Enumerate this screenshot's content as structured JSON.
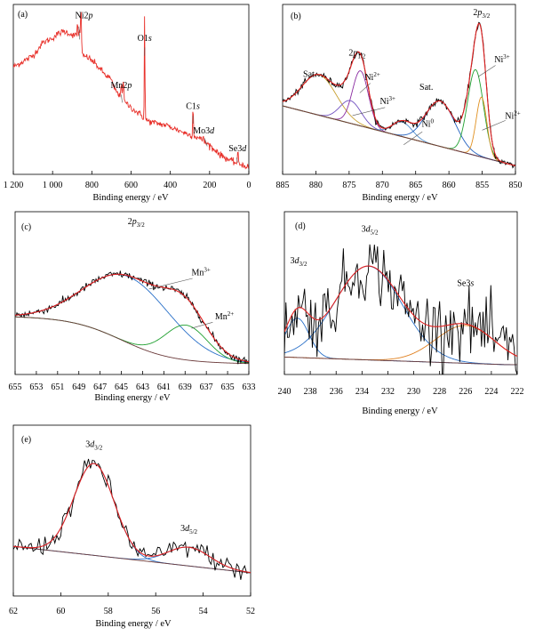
{
  "chart_data": [
    {
      "id": "a",
      "type": "line",
      "panel_label": "(a)",
      "xlabel": "Binding energy / eV",
      "xlim": [
        1200,
        0
      ],
      "ylim": [
        0,
        100
      ],
      "ticks": [
        {
          "v": 1200,
          "t": "1 200"
        },
        {
          "v": 1000,
          "t": "1 000"
        },
        {
          "v": 800,
          "t": "800"
        },
        {
          "v": 600,
          "t": "600"
        },
        {
          "v": 400,
          "t": "400"
        },
        {
          "v": 200,
          "t": "200"
        },
        {
          "v": 0,
          "t": "0"
        }
      ],
      "annotations": [
        {
          "id": "ni2p",
          "text": "Ni2",
          "italic": "p",
          "x": 840,
          "y": 93
        },
        {
          "id": "o1s",
          "text": "O1",
          "italic": "s",
          "x": 531,
          "y": 79
        },
        {
          "id": "mn2p",
          "text": "Mn2",
          "italic": "p",
          "x": 650,
          "y": 50
        },
        {
          "id": "c1s",
          "text": "C1",
          "italic": "s",
          "x": 285,
          "y": 37
        },
        {
          "id": "mo3d",
          "text": "Mo3",
          "italic": "d",
          "x": 230,
          "y": 22
        },
        {
          "id": "se3d",
          "text": "Se3",
          "italic": "d",
          "x": 58,
          "y": 11
        }
      ],
      "series": [
        {
          "color": "#e8302a",
          "base_curve": [
            [
              1200,
              63
            ],
            [
              1100,
              70
            ],
            [
              1050,
              78
            ],
            [
              1000,
              81
            ],
            [
              965,
              84
            ],
            [
              940,
              85
            ],
            [
              900,
              83
            ],
            [
              870,
              82
            ],
            [
              860,
              80
            ],
            [
              855,
              76
            ],
            [
              850,
              70
            ],
            [
              820,
              69
            ],
            [
              790,
              66
            ],
            [
              760,
              62
            ],
            [
              730,
              58
            ],
            [
              705,
              56
            ],
            [
              690,
              51
            ],
            [
              670,
              47
            ],
            [
              650,
              43
            ],
            [
              630,
              41
            ],
            [
              600,
              38
            ],
            [
              570,
              35
            ],
            [
              545,
              33
            ],
            [
              535,
              31
            ],
            [
              500,
              29
            ],
            [
              460,
              28
            ],
            [
              420,
              27
            ],
            [
              380,
              25
            ],
            [
              340,
              23
            ],
            [
              300,
              21
            ],
            [
              270,
              20
            ],
            [
              240,
              18
            ],
            [
              220,
              16
            ],
            [
              200,
              15
            ],
            [
              180,
              12
            ],
            [
              150,
              9
            ],
            [
              120,
              7
            ],
            [
              90,
              5
            ],
            [
              70,
              4
            ],
            [
              40,
              3
            ],
            [
              20,
              2
            ],
            [
              0,
              1
            ]
          ],
          "peaks": [
            {
              "x": 855,
              "h": 22,
              "w": 2.2
            },
            {
              "x": 873,
              "h": 8,
              "w": 2
            },
            {
              "x": 862,
              "h": 5,
              "w": 3
            },
            {
              "x": 650,
              "h": 10,
              "w": 3
            },
            {
              "x": 640,
              "h": 13,
              "w": 2.5
            },
            {
              "x": 531,
              "h": 65,
              "w": 1.6
            },
            {
              "x": 284.5,
              "h": 22,
              "w": 1.6
            },
            {
              "x": 232,
              "h": 4,
              "w": 2
            },
            {
              "x": 162,
              "h": 3,
              "w": 2
            },
            {
              "x": 56,
              "h": 9,
              "w": 1.5
            }
          ],
          "noise": 1.0
        }
      ]
    },
    {
      "id": "b",
      "type": "line",
      "panel_label": "(b)",
      "xlabel": "Binding energy / eV",
      "xlim": [
        885,
        850
      ],
      "ylim": [
        0,
        100
      ],
      "ticks": [
        {
          "v": 885,
          "t": "885"
        },
        {
          "v": 880,
          "t": "880"
        },
        {
          "v": 875,
          "t": "875"
        },
        {
          "v": 870,
          "t": "870"
        },
        {
          "v": 865,
          "t": "865"
        },
        {
          "v": 860,
          "t": "860"
        },
        {
          "v": 855,
          "t": "855"
        },
        {
          "v": 850,
          "t": "850"
        }
      ],
      "annotations": [
        {
          "id": "sat1",
          "text": "Sat.",
          "x": 880.9,
          "y": 57
        },
        {
          "id": "2p12",
          "text": "2",
          "italic": "p",
          "sub": "1/2",
          "x": 873.8,
          "y": 70
        },
        {
          "id": "ni2plus_a",
          "text": "Ni",
          "sup": "2+",
          "x": 871.5,
          "y": 55
        },
        {
          "id": "ni3plus_a",
          "text": "Ni",
          "sup": "3+",
          "x": 869.2,
          "y": 40
        },
        {
          "id": "sat2",
          "text": "Sat.",
          "x": 863.4,
          "y": 49
        },
        {
          "id": "ni0",
          "text": "Ni",
          "sup": "0",
          "x": 863.2,
          "y": 26
        },
        {
          "id": "2p32",
          "text": "2",
          "italic": "p",
          "sub": "3/2",
          "x": 855.1,
          "y": 95
        },
        {
          "id": "ni3plus_b",
          "text": "Ni",
          "sup": "3+",
          "x": 852.0,
          "y": 66
        },
        {
          "id": "ni2plus_b",
          "text": "Ni",
          "sup": "2+",
          "x": 850.4,
          "y": 31
        }
      ],
      "background": [
        [
          885,
          39
        ],
        [
          850,
          2
        ]
      ],
      "components": [
        {
          "name": "Sat.",
          "color": "#c8a030",
          "x": 879.5,
          "h": 25,
          "w": 2.6
        },
        {
          "name": "Ni2+ (2p1/2)",
          "color": "#8a2aa0",
          "x": 873.3,
          "h": 34,
          "w": 1.2
        },
        {
          "name": "Ni3+ (2p1/2)",
          "color": "#7050c0",
          "x": 874.8,
          "h": 14,
          "w": 1.6
        },
        {
          "name": "Ni0",
          "color": "#5090d0",
          "x": 867.0,
          "h": 9,
          "w": 1.5
        },
        {
          "name": "Sat.",
          "color": "#2060c0",
          "x": 861.3,
          "h": 28,
          "w": 2.2
        },
        {
          "name": "Ni3+ (2p3/2)",
          "color": "#20a030",
          "x": 856.0,
          "h": 53,
          "w": 1.2
        },
        {
          "name": "Ni2+ (2p3/2)",
          "color": "#e09020",
          "x": 855.1,
          "h": 37,
          "w": 0.8
        }
      ],
      "envelope_color": "#e02020",
      "raw_color": "#000000",
      "raw_noise": 1.0
    },
    {
      "id": "c",
      "type": "line",
      "panel_label": "(c)",
      "xlabel": "Binding energy / eV",
      "xlim": [
        655,
        633
      ],
      "ylim": [
        0,
        100
      ],
      "ticks": [
        {
          "v": 655,
          "t": "655"
        },
        {
          "v": 653,
          "t": "653"
        },
        {
          "v": 651,
          "t": "651"
        },
        {
          "v": 649,
          "t": "649"
        },
        {
          "v": 647,
          "t": "647"
        },
        {
          "v": 645,
          "t": "645"
        },
        {
          "v": 643,
          "t": "643"
        },
        {
          "v": 641,
          "t": "641"
        },
        {
          "v": 639,
          "t": "639"
        },
        {
          "v": 637,
          "t": "637"
        },
        {
          "v": 635,
          "t": "635"
        },
        {
          "v": 633,
          "t": "633"
        }
      ],
      "annotations": [
        {
          "id": "2p32",
          "text": "2",
          "italic": "p",
          "sub": "3/2",
          "x": 643.6,
          "y": 96
        },
        {
          "id": "mn3plus",
          "text": "Mn",
          "sup": "3+",
          "x": 637.5,
          "y": 62
        },
        {
          "id": "mn2plus",
          "text": "Mn",
          "sup": "2+",
          "x": 635.3,
          "y": 33
        }
      ],
      "background": "sigmoid",
      "components": [
        {
          "name": "Mn3+",
          "color": "#2a70c8",
          "x": 644.2,
          "h": 44,
          "w": 4.0
        },
        {
          "name": "Mn2+",
          "color": "#20a030",
          "x": 638.9,
          "h": 23,
          "w": 2.0
        }
      ],
      "envelope_color": "#e02020",
      "raw_color": "#000000",
      "raw_noise": 1.2
    },
    {
      "id": "d",
      "type": "line",
      "panel_label": "(d)",
      "xlabel": "Binding energy / eV",
      "xlim": [
        240,
        222
      ],
      "ylim": [
        0,
        100
      ],
      "ticks": [
        {
          "v": 240,
          "t": "240"
        },
        {
          "v": 238,
          "t": "238"
        },
        {
          "v": 236,
          "t": "236"
        },
        {
          "v": 234,
          "t": "234"
        },
        {
          "v": 232,
          "t": "232"
        },
        {
          "v": 230,
          "t": "230"
        },
        {
          "v": 228,
          "t": "228"
        },
        {
          "v": 226,
          "t": "226"
        },
        {
          "v": 224,
          "t": "224"
        },
        {
          "v": 222,
          "t": "222"
        }
      ],
      "annotations": [
        {
          "id": "3d32",
          "text": "3",
          "italic": "d",
          "sub": "3/2",
          "x": 238.9,
          "y": 70
        },
        {
          "id": "3d52",
          "text": "3",
          "italic": "d",
          "sub": "5/2",
          "x": 233.4,
          "y": 91
        },
        {
          "id": "se3s",
          "text": "Se3",
          "italic": "s",
          "x": 226.0,
          "y": 55
        }
      ],
      "background": [
        [
          240,
          8
        ],
        [
          223,
          3
        ]
      ],
      "components": [
        {
          "name": "3d3/2",
          "color": "#2a70c8",
          "x": 239.0,
          "h": 26,
          "w": 0.9
        },
        {
          "name": "3d5/2",
          "color": "#2a70c8",
          "x": 233.5,
          "h": 62,
          "w": 2.6
        },
        {
          "name": "Se3s",
          "color": "#e08020",
          "x": 226.0,
          "h": 25,
          "w": 2.3
        }
      ],
      "envelope_color": "#e02020",
      "raw_color": "#000000",
      "raw_noise": 11.0
    },
    {
      "id": "e",
      "type": "line",
      "panel_label": "(e)",
      "xlabel": "Binding energy / eV",
      "xlim": [
        62,
        52
      ],
      "ylim": [
        0,
        100
      ],
      "ticks": [
        {
          "v": 62,
          "t": "62"
        },
        {
          "v": 60,
          "t": "60"
        },
        {
          "v": 58,
          "t": "58"
        },
        {
          "v": 56,
          "t": "56"
        },
        {
          "v": 54,
          "t": "54"
        },
        {
          "v": 52,
          "t": "52"
        }
      ],
      "annotations": [
        {
          "id": "3d32",
          "text": "3",
          "italic": "d",
          "sub": "3/2",
          "x": 58.6,
          "y": 93
        },
        {
          "id": "3d52",
          "text": "3",
          "italic": "d",
          "sub": "5/2",
          "x": 54.6,
          "y": 39
        }
      ],
      "background": [
        [
          62,
          29
        ],
        [
          52,
          12
        ]
      ],
      "components": [
        {
          "name": "3d3/2",
          "color": "#2a70c8",
          "x": 58.6,
          "h": 59,
          "w": 0.85
        },
        {
          "name": "3d5/2",
          "color": "#2a70c8",
          "x": 54.6,
          "h": 12,
          "w": 0.9
        }
      ],
      "envelope_color": "#e02020",
      "raw_color": "#000000",
      "raw_noise": 3.2
    }
  ]
}
